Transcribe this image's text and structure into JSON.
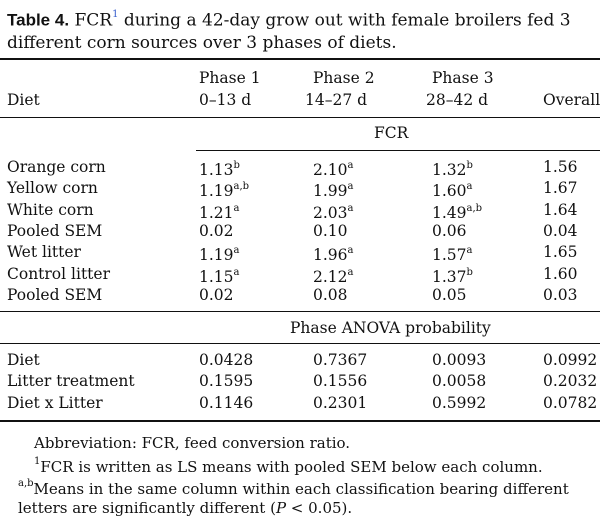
{
  "caption": {
    "label": "Table 4.",
    "text_before": " FCR",
    "footnote_ref": "1",
    "text_after": " during a 42-day grow out with female broilers fed 3",
    "line2": "different corn sources over 3 phases of diets."
  },
  "header": {
    "diet": "Diet",
    "phase1": "Phase 1",
    "phase1_range": "0–13 d",
    "phase2": "Phase 2",
    "phase2_range": "14–27 d",
    "phase3": "Phase 3",
    "phase3_range": "28–42 d",
    "overall": "Overall"
  },
  "fcr_section": {
    "label": "FCR",
    "rows": [
      {
        "diet": "Orange corn",
        "p1": "1.13",
        "p1_sup": "b",
        "p2": "2.10",
        "p2_sup": "a",
        "p3": "1.32",
        "p3_sup": "b",
        "overall": "1.56"
      },
      {
        "diet": "Yellow corn",
        "p1": "1.19",
        "p1_sup": "a,b",
        "p2": "1.99",
        "p2_sup": "a",
        "p3": "1.60",
        "p3_sup": "a",
        "overall": "1.67"
      },
      {
        "diet": "White corn",
        "p1": "1.21",
        "p1_sup": "a",
        "p2": "2.03",
        "p2_sup": "a",
        "p3": "1.49",
        "p3_sup": "a,b",
        "overall": "1.64"
      },
      {
        "diet": "Pooled SEM",
        "p1": "0.02",
        "p1_sup": "",
        "p2": "0.10",
        "p2_sup": "",
        "p3": "0.06",
        "p3_sup": "",
        "overall": "0.04"
      },
      {
        "diet": "Wet litter",
        "p1": "1.19",
        "p1_sup": "a",
        "p2": "1.96",
        "p2_sup": "a",
        "p3": "1.57",
        "p3_sup": "a",
        "overall": "1.65"
      },
      {
        "diet": "Control litter",
        "p1": "1.15",
        "p1_sup": "a",
        "p2": "2.12",
        "p2_sup": "a",
        "p3": "1.37",
        "p3_sup": "b",
        "overall": "1.60"
      },
      {
        "diet": "Pooled SEM",
        "p1": "0.02",
        "p1_sup": "",
        "p2": "0.08",
        "p2_sup": "",
        "p3": "0.05",
        "p3_sup": "",
        "overall": "0.03"
      }
    ]
  },
  "anova_section": {
    "label": "Phase ANOVA probability",
    "rows": [
      {
        "diet": "Diet",
        "p1": "0.0428",
        "p1_sup": "",
        "p2": "0.7367",
        "p2_sup": "",
        "p3": "0.0093",
        "p3_sup": "",
        "overall": "0.0992"
      },
      {
        "diet": "Litter treatment",
        "p1": "0.1595",
        "p1_sup": "",
        "p2": "0.1556",
        "p2_sup": "",
        "p3": "0.0058",
        "p3_sup": "",
        "overall": "0.2032"
      },
      {
        "diet": "Diet x Litter",
        "p1": "0.1146",
        "p1_sup": "",
        "p2": "0.2301",
        "p2_sup": "",
        "p3": "0.5992",
        "p3_sup": "",
        "overall": "0.0782"
      }
    ]
  },
  "footnotes": {
    "abbreviation": "Abbreviation: FCR, feed conversion ratio.",
    "note1_marker": "1",
    "note1_text": "FCR is written as LS means with pooled SEM below each column.",
    "note2_marker": "a,b",
    "note2_text": "Means in the same column within each classification bearing different",
    "note2_line2_before": "letters are significantly different (",
    "note2_p": "P",
    "note2_line2_after": " < 0.05)."
  },
  "colors": {
    "footnote_ref": "#3a5fcd",
    "text": "#111111"
  }
}
